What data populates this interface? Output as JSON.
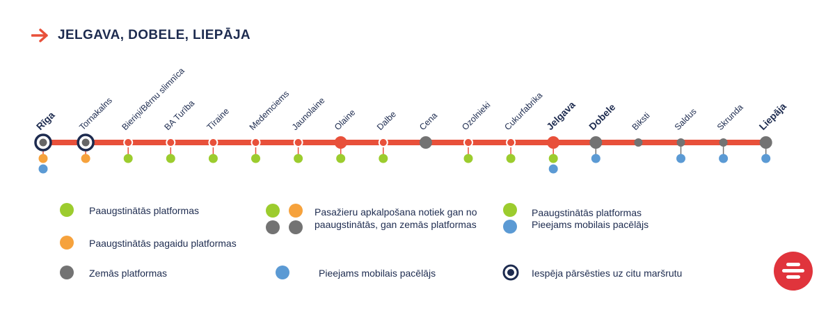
{
  "header": {
    "title": "JELGAVA, DOBELE, LIEPĀJA",
    "icon": "arrow-right-icon"
  },
  "colors": {
    "line": "#e8503a",
    "navy": "#1d2b4f",
    "green": "#9ccc2e",
    "orange": "#f6a23c",
    "gray": "#737373",
    "blue": "#5b9ad4"
  },
  "stations": [
    {
      "name": "Rīga",
      "bold": true,
      "marker": "transfer",
      "platforms": [
        "orange",
        "blue"
      ]
    },
    {
      "name": "Tornakalns",
      "bold": false,
      "marker": "transfer",
      "platforms": [
        "orange"
      ]
    },
    {
      "name": "Bieriņi/Bērnu slimnīca",
      "bold": false,
      "marker": "small",
      "platforms": [
        "green"
      ]
    },
    {
      "name": "BA Turība",
      "bold": false,
      "marker": "small",
      "platforms": [
        "green"
      ]
    },
    {
      "name": "Tīraine",
      "bold": false,
      "marker": "small",
      "platforms": [
        "green"
      ]
    },
    {
      "name": "Medemciems",
      "bold": false,
      "marker": "small",
      "platforms": [
        "green"
      ]
    },
    {
      "name": "Jaunolaine",
      "bold": false,
      "marker": "small",
      "platforms": [
        "green"
      ]
    },
    {
      "name": "Olaine",
      "bold": false,
      "marker": "large-red",
      "platforms": [
        "green"
      ]
    },
    {
      "name": "Dalbe",
      "bold": false,
      "marker": "small",
      "platforms": [
        "green"
      ]
    },
    {
      "name": "Cena",
      "bold": false,
      "marker": "large-gray",
      "platforms": []
    },
    {
      "name": "Ozolnieki",
      "bold": false,
      "marker": "small",
      "platforms": [
        "green"
      ]
    },
    {
      "name": "Cukurfabrika",
      "bold": false,
      "marker": "small",
      "platforms": [
        "green"
      ]
    },
    {
      "name": "Jelgava",
      "bold": true,
      "marker": "large-red",
      "platforms": [
        "green",
        "blue"
      ]
    },
    {
      "name": "Dobele",
      "bold": true,
      "marker": "large-gray",
      "platforms": [
        "blue"
      ]
    },
    {
      "name": "Biksti",
      "bold": false,
      "marker": "small-gray",
      "platforms": []
    },
    {
      "name": "Saldus",
      "bold": false,
      "marker": "small-gray",
      "platforms": [
        "blue"
      ]
    },
    {
      "name": "Skrunda",
      "bold": false,
      "marker": "small-gray",
      "platforms": [
        "blue"
      ]
    },
    {
      "name": "Liepāja",
      "bold": true,
      "marker": "large-gray",
      "platforms": [
        "blue"
      ]
    }
  ],
  "legend": {
    "raised_platforms": "Paaugstinātās platformas",
    "raised_partial": "Paaugstinātās pagaidu platformas",
    "low_platforms": "Zemās platformas",
    "mixed_line1": "Pasažieru apkalpošana notiek gan no",
    "mixed_line2": "paaugstinātās, gan zemās platformas",
    "mobile_lift": "Pieejams mobilais pacēlājs",
    "raised_lift_line1": "Paaugstinātās platformas",
    "raised_lift_line2": "Pieejams mobilais pacēlājs",
    "transfer": "Iespēja pārsēsties uz citu maršrutu"
  },
  "logo": {
    "icon": "carrier-logo-icon"
  }
}
